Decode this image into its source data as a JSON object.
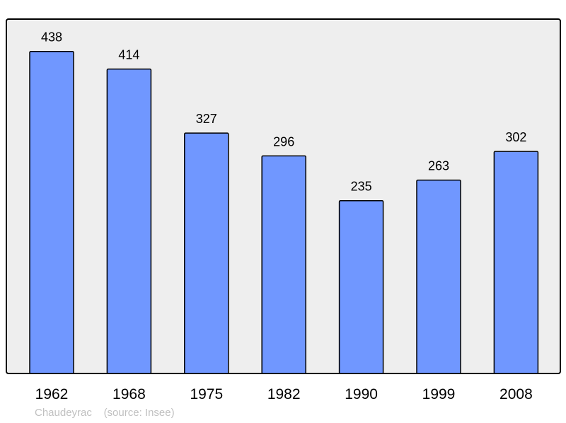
{
  "chart_data": {
    "type": "bar",
    "categories": [
      "1962",
      "1968",
      "1975",
      "1982",
      "1990",
      "1999",
      "2008"
    ],
    "values": [
      438,
      414,
      327,
      296,
      235,
      263,
      302
    ],
    "title": "",
    "xlabel": "",
    "ylabel": "",
    "ylim": [
      0,
      482
    ],
    "grid": false,
    "data_labels": true,
    "colors": {
      "bar": "#7097ff",
      "bar_stroke": "#000000",
      "plot_bg": "#eeeeee"
    }
  },
  "footer": {
    "place": "Chaudeyrac",
    "source": "(source: Insee)"
  }
}
